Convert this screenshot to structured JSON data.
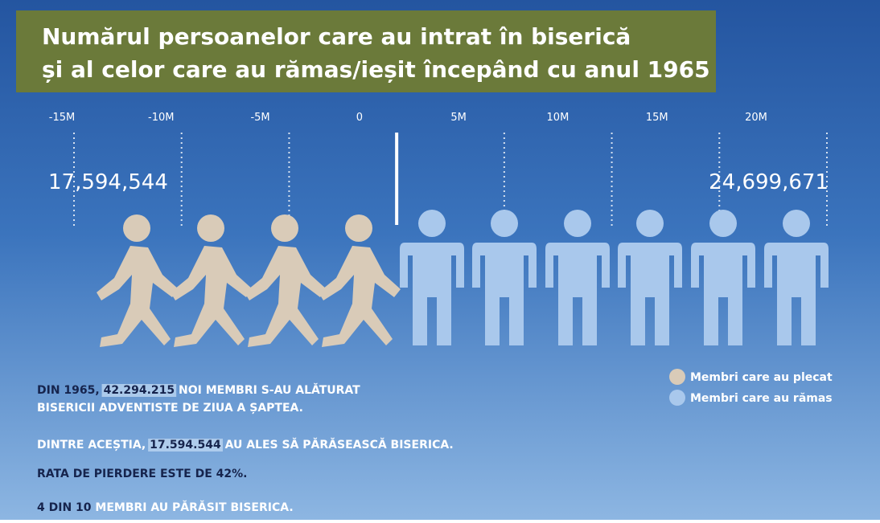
{
  "chart_data": {
    "type": "diverging_pictogram",
    "title": [
      "Numărul persoanelor care au intrat în biserică",
      "și al celor care au rămas/ieșit începând cu anul 1965"
    ],
    "xlim": [
      -15000000,
      20000000
    ],
    "xticks": [
      {
        "value": -15000000,
        "label": "-15M"
      },
      {
        "value": -10000000,
        "label": "-10M"
      },
      {
        "value": -5000000,
        "label": "-5M"
      },
      0,
      {
        "value": 5000000,
        "label": "5M"
      },
      {
        "value": 10000000,
        "label": "10M"
      },
      {
        "value": 15000000,
        "label": "15M"
      },
      {
        "value": 20000000,
        "label": "20M"
      }
    ],
    "series": [
      {
        "name": "Membri care au plecat",
        "color": "#d9cbb8",
        "values": [
          17594544
        ],
        "value_labels": [
          "17,594,544"
        ]
      },
      {
        "name": "Membri care au rămas",
        "color": "#a9c8ec",
        "values": [
          24699671
        ],
        "value_labels": [
          "24,699,671"
        ]
      }
    ],
    "notes": [
      [
        {
          "text": "DIN 1965, ",
          "color": "#16244d"
        },
        {
          "text": "42.294.215",
          "color": "#16244d",
          "highlight": true
        },
        {
          "text": " NOI MEMBRI S-AU ALĂTURAT",
          "color": "#ffffff"
        }
      ],
      [
        {
          "text": "BISERICII ADVENTISTE DE ZIUA A ȘAPTEA.",
          "color": "#ffffff"
        }
      ],
      [
        {
          "text": "DINTRE ACEȘTIA, ",
          "color": "#ffffff"
        },
        {
          "text": "17.594.544",
          "color": "#16244d",
          "highlight": true
        },
        {
          "text": " AU ALES SĂ PĂRĂSEASCĂ BISERICA.",
          "color": "#ffffff"
        }
      ],
      [
        {
          "text": "RATA DE PIERDERE ESTE DE 42%.",
          "color": "#16244d"
        }
      ],
      [
        {
          "text": "4 DIN 10",
          "color": "#16244d"
        },
        {
          "text": " MEMBRI AU PĂRĂSIT BISERICA.",
          "color": "#ffffff"
        }
      ]
    ]
  }
}
